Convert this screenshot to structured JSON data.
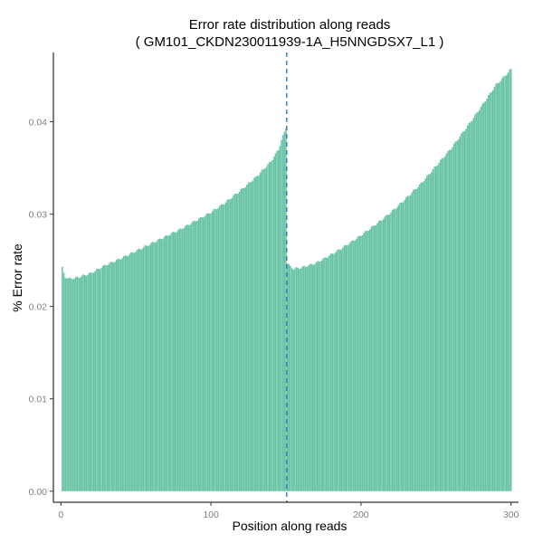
{
  "chart_data": {
    "type": "bar",
    "title": "Error rate distribution along reads",
    "subtitle": "( GM101_CKDN230011939-1A_H5NNGDSX7_L1 )",
    "xlabel": "Position along reads",
    "ylabel": "% Error rate",
    "xlim": [
      -5,
      305
    ],
    "ylim": [
      -0.0012,
      0.0475
    ],
    "x_ticks": [
      "0",
      "100",
      "200",
      "300"
    ],
    "x_tick_values": [
      0,
      100,
      200,
      300
    ],
    "y_ticks": [
      "0.00",
      "0.01",
      "0.02",
      "0.03",
      "0.04"
    ],
    "y_tick_values": [
      0,
      0.01,
      0.02,
      0.03,
      0.04
    ],
    "grid": false,
    "bar_color": "#66c2a5",
    "vline": {
      "x": 150.5,
      "style": "dashed",
      "color": "#2b7bba"
    },
    "series": [
      {
        "profile": [
          {
            "x": 1,
            "y": 0.0242
          },
          {
            "x": 2,
            "y": 0.0236
          },
          {
            "x": 3,
            "y": 0.0232
          },
          {
            "x": 5,
            "y": 0.023
          },
          {
            "x": 10,
            "y": 0.0231
          },
          {
            "x": 20,
            "y": 0.0236
          },
          {
            "x": 30,
            "y": 0.0245
          },
          {
            "x": 40,
            "y": 0.0252
          },
          {
            "x": 50,
            "y": 0.026
          },
          {
            "x": 60,
            "y": 0.0268
          },
          {
            "x": 70,
            "y": 0.0276
          },
          {
            "x": 80,
            "y": 0.0284
          },
          {
            "x": 90,
            "y": 0.0293
          },
          {
            "x": 100,
            "y": 0.0302
          },
          {
            "x": 110,
            "y": 0.0313
          },
          {
            "x": 120,
            "y": 0.0326
          },
          {
            "x": 130,
            "y": 0.034
          },
          {
            "x": 140,
            "y": 0.0357
          },
          {
            "x": 145,
            "y": 0.037
          },
          {
            "x": 150,
            "y": 0.0394
          },
          {
            "x": 151,
            "y": 0.0247
          },
          {
            "x": 153,
            "y": 0.0243
          },
          {
            "x": 155,
            "y": 0.0241
          },
          {
            "x": 160,
            "y": 0.0242
          },
          {
            "x": 170,
            "y": 0.0247
          },
          {
            "x": 180,
            "y": 0.0256
          },
          {
            "x": 190,
            "y": 0.0266
          },
          {
            "x": 200,
            "y": 0.0277
          },
          {
            "x": 210,
            "y": 0.0289
          },
          {
            "x": 220,
            "y": 0.0302
          },
          {
            "x": 230,
            "y": 0.0317
          },
          {
            "x": 240,
            "y": 0.0333
          },
          {
            "x": 250,
            "y": 0.0352
          },
          {
            "x": 260,
            "y": 0.0371
          },
          {
            "x": 270,
            "y": 0.0393
          },
          {
            "x": 280,
            "y": 0.0416
          },
          {
            "x": 290,
            "y": 0.044
          },
          {
            "x": 295,
            "y": 0.0448
          },
          {
            "x": 300,
            "y": 0.0457
          }
        ]
      }
    ]
  }
}
